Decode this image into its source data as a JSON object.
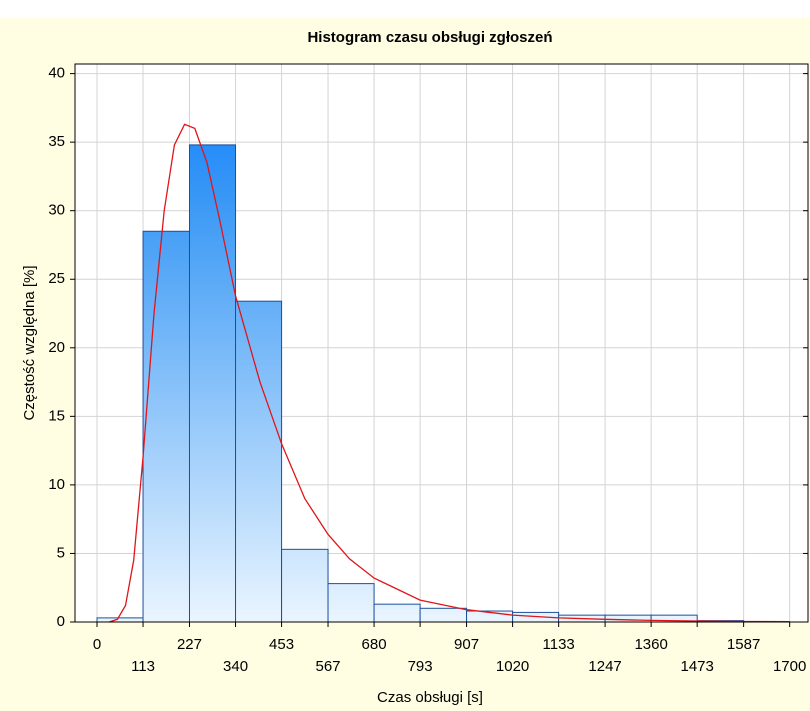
{
  "chart_data": {
    "type": "histogram",
    "title": "Histogram czasu obsługi zgłoszeń",
    "x_label": "Czas obsługi [s]",
    "y_label": "Częstość względna [%]",
    "bins": [
      0,
      113,
      227,
      340,
      453,
      567,
      680,
      793,
      907,
      1020,
      1133,
      1247,
      1360,
      1473,
      1587,
      1700
    ],
    "values": [
      0.3,
      28.5,
      34.8,
      23.4,
      5.3,
      2.8,
      1.3,
      1.0,
      0.8,
      0.7,
      0.5,
      0.5,
      0.5,
      0.1,
      0
    ],
    "color": "#1e8fff",
    "edge_color": "#1d4f9c",
    "fit_curve": {
      "color": "#e0151a",
      "x": [
        30,
        50,
        70,
        90,
        113,
        140,
        165,
        190,
        215,
        240,
        270,
        300,
        340,
        400,
        453,
        510,
        567,
        620,
        680,
        793,
        907,
        1020,
        1133,
        1247,
        1360,
        1473,
        1587,
        1700
      ],
      "y": [
        0,
        0.2,
        1.2,
        4.5,
        12,
        22.5,
        30,
        34.8,
        36.3,
        36,
        33.5,
        29.5,
        23.8,
        17.5,
        13,
        9,
        6.4,
        4.6,
        3.2,
        1.6,
        0.9,
        0.5,
        0.3,
        0.2,
        0.12,
        0.07,
        0.04,
        0.02
      ]
    },
    "xlim": [
      -54,
      1745
    ],
    "ylim": [
      0,
      40.7
    ],
    "xticks": [
      0,
      113,
      227,
      340,
      453,
      567,
      680,
      793,
      907,
      1020,
      1133,
      1247,
      1360,
      1473,
      1587,
      1700
    ],
    "yticks": [
      0,
      5,
      10,
      15,
      20,
      25,
      30,
      35,
      40
    ],
    "grid": true
  }
}
